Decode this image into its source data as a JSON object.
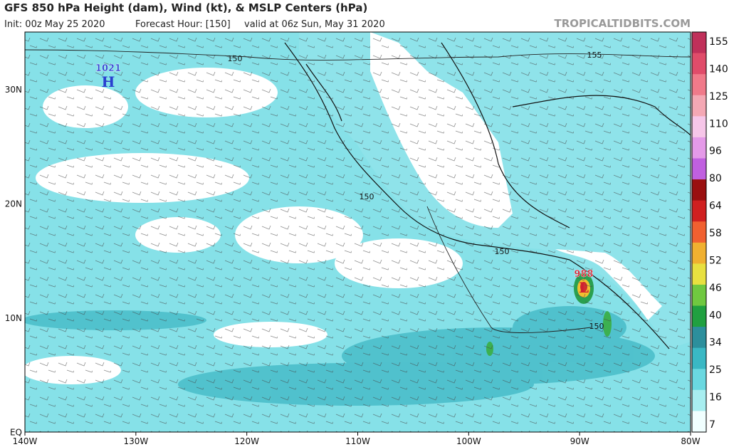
{
  "header": {
    "title": "GFS 850 hPa Height (dam), Wind (kt), & MSLP Centers (hPa)",
    "init": "Init: 00z May 25 2020",
    "forecast": "Forecast Hour: [150]",
    "valid": "valid at 06z Sun, May 31 2020",
    "brand": "TROPICALTIDBITS.COM"
  },
  "map": {
    "lon_labels": [
      "140W",
      "130W",
      "120W",
      "110W",
      "100W",
      "90W",
      "80W"
    ],
    "lat_labels": [
      "30N",
      "20N",
      "10N",
      "EQ"
    ],
    "contour_labels": [
      "150",
      "150",
      "150",
      "150",
      "155"
    ],
    "centers": [
      {
        "pressure": "1021",
        "symbol": "H"
      },
      {
        "pressure": "988",
        "symbol": "L"
      }
    ]
  },
  "colorbar": {
    "labels": [
      155,
      140,
      125,
      110,
      96,
      80,
      64,
      58,
      52,
      46,
      40,
      34,
      25,
      16,
      7
    ]
  }
}
